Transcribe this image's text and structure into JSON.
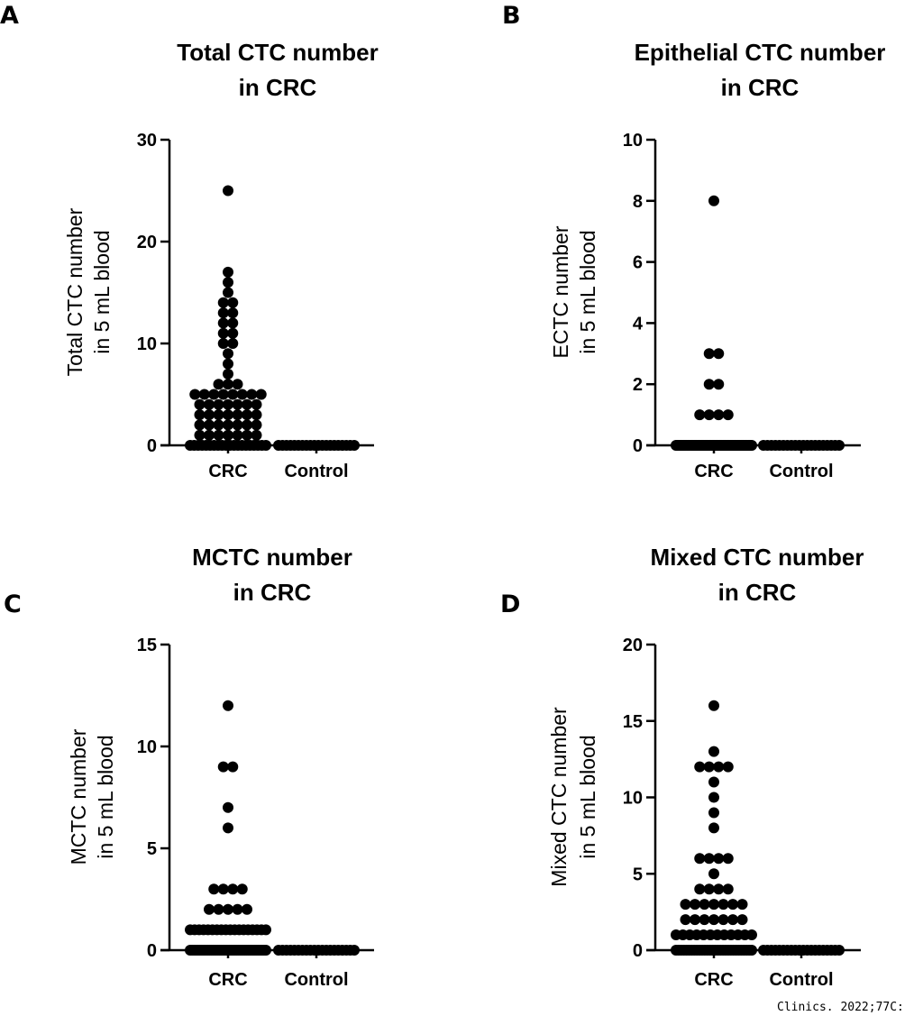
{
  "figure": {
    "citation": "Clinics. 2022;77C:"
  },
  "chart_data": [
    {
      "type": "scatter",
      "panel": "A",
      "title_lines": [
        "Total CTC number",
        "in CRC"
      ],
      "ylabel_lines": [
        "Total CTC number",
        "in 5 mL blood"
      ],
      "xlabel": "",
      "categories": [
        "CRC",
        "Control"
      ],
      "ylim": [
        0,
        30
      ],
      "yticks": [
        0,
        10,
        20,
        30
      ],
      "grid": false,
      "legend": "none",
      "series": [
        {
          "name": "CRC",
          "values": [
            0,
            0,
            0,
            0,
            0,
            0,
            0,
            0,
            0,
            0,
            0,
            0,
            0,
            0,
            0,
            0,
            0,
            0,
            0,
            0,
            1,
            1,
            1,
            1,
            1,
            1,
            1,
            2,
            2,
            2,
            2,
            2,
            2,
            2,
            3,
            3,
            3,
            3,
            3,
            3,
            3,
            4,
            4,
            4,
            4,
            4,
            4,
            4,
            5,
            5,
            5,
            5,
            5,
            5,
            5,
            5,
            6,
            6,
            6,
            7,
            8,
            9,
            10,
            10,
            11,
            11,
            12,
            12,
            13,
            13,
            14,
            14,
            15,
            16,
            17,
            25
          ]
        },
        {
          "name": "Control",
          "values": [
            0,
            0,
            0,
            0,
            0,
            0,
            0,
            0,
            0,
            0,
            0,
            0,
            0,
            0,
            0,
            0,
            0,
            0,
            0,
            0
          ]
        }
      ],
      "colors": {
        "marker": "#000000",
        "axis": "#000000"
      }
    },
    {
      "type": "scatter",
      "panel": "B",
      "title_lines": [
        "Epithelial CTC number",
        "in CRC"
      ],
      "ylabel_lines": [
        "ECTC number",
        "in 5 mL blood"
      ],
      "xlabel": "",
      "categories": [
        "CRC",
        "Control"
      ],
      "ylim": [
        0,
        10
      ],
      "yticks": [
        0,
        2,
        4,
        6,
        8,
        10
      ],
      "grid": false,
      "legend": "none",
      "series": [
        {
          "name": "CRC",
          "values": [
            0,
            0,
            0,
            0,
            0,
            0,
            0,
            0,
            0,
            0,
            0,
            0,
            0,
            0,
            0,
            0,
            0,
            0,
            0,
            0,
            0,
            0,
            0,
            0,
            0,
            0,
            0,
            0,
            0,
            0,
            0,
            0,
            0,
            0,
            0,
            0,
            0,
            0,
            0,
            0,
            0,
            0,
            0,
            0,
            0,
            0,
            0,
            0,
            0,
            0,
            0,
            0,
            0,
            0,
            0,
            0,
            0,
            0,
            0,
            0,
            0,
            0,
            0,
            0,
            1,
            1,
            1,
            1,
            2,
            2,
            3,
            3,
            8
          ]
        },
        {
          "name": "Control",
          "values": [
            0,
            0,
            0,
            0,
            0,
            0,
            0,
            0,
            0,
            0,
            0,
            0,
            0,
            0,
            0,
            0,
            0,
            0,
            0,
            0
          ]
        }
      ],
      "colors": {
        "marker": "#000000",
        "axis": "#000000"
      }
    },
    {
      "type": "scatter",
      "panel": "C",
      "title_lines": [
        "MCTC number",
        "in CRC"
      ],
      "ylabel_lines": [
        "MCTC number",
        "in 5 mL blood"
      ],
      "xlabel": "",
      "categories": [
        "CRC",
        "Control"
      ],
      "ylim": [
        0,
        15
      ],
      "yticks": [
        0,
        5,
        10,
        15
      ],
      "grid": false,
      "legend": "none",
      "series": [
        {
          "name": "CRC",
          "values": [
            0,
            0,
            0,
            0,
            0,
            0,
            0,
            0,
            0,
            0,
            0,
            0,
            0,
            0,
            0,
            0,
            0,
            0,
            0,
            0,
            0,
            0,
            0,
            0,
            0,
            0,
            0,
            0,
            0,
            0,
            0,
            0,
            0,
            0,
            0,
            0,
            0,
            0,
            0,
            0,
            1,
            1,
            1,
            1,
            1,
            1,
            1,
            1,
            1,
            1,
            1,
            1,
            1,
            1,
            1,
            1,
            1,
            1,
            2,
            2,
            2,
            2,
            2,
            3,
            3,
            3,
            3,
            6,
            7,
            9,
            9,
            12
          ]
        },
        {
          "name": "Control",
          "values": [
            0,
            0,
            0,
            0,
            0,
            0,
            0,
            0,
            0,
            0,
            0,
            0,
            0,
            0,
            0,
            0,
            0,
            0,
            0,
            0
          ]
        }
      ],
      "colors": {
        "marker": "#000000",
        "axis": "#000000"
      }
    },
    {
      "type": "scatter",
      "panel": "D",
      "title_lines": [
        "Mixed CTC number",
        "in CRC"
      ],
      "ylabel_lines": [
        "Mixed CTC number",
        "in 5 mL blood"
      ],
      "xlabel": "",
      "categories": [
        "CRC",
        "Control"
      ],
      "ylim": [
        0,
        20
      ],
      "yticks": [
        0,
        5,
        10,
        15,
        20
      ],
      "grid": false,
      "legend": "none",
      "series": [
        {
          "name": "CRC",
          "values": [
            0,
            0,
            0,
            0,
            0,
            0,
            0,
            0,
            0,
            0,
            0,
            0,
            0,
            0,
            0,
            0,
            0,
            0,
            0,
            0,
            0,
            0,
            0,
            0,
            0,
            0,
            0,
            0,
            0,
            0,
            1,
            1,
            1,
            1,
            1,
            1,
            1,
            1,
            1,
            1,
            1,
            1,
            2,
            2,
            2,
            2,
            2,
            2,
            2,
            3,
            3,
            3,
            3,
            3,
            3,
            3,
            4,
            4,
            4,
            4,
            5,
            6,
            6,
            6,
            6,
            8,
            9,
            10,
            11,
            12,
            12,
            12,
            12,
            13,
            16
          ]
        },
        {
          "name": "Control",
          "values": [
            0,
            0,
            0,
            0,
            0,
            0,
            0,
            0,
            0,
            0,
            0,
            0,
            0,
            0,
            0,
            0,
            0,
            0,
            0,
            0
          ]
        }
      ],
      "colors": {
        "marker": "#000000",
        "axis": "#000000"
      }
    }
  ]
}
